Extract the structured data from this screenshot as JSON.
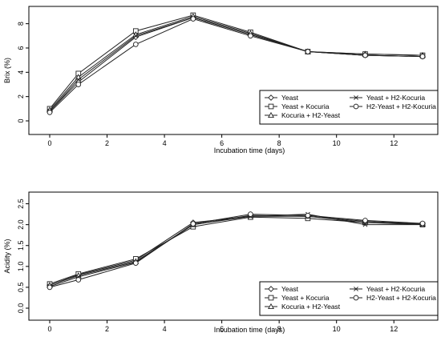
{
  "chart_data": [
    {
      "type": "line",
      "title": "",
      "xlabel": "Incubation time (days)",
      "ylabel": "Brix (%)",
      "xlim": [
        0,
        13
      ],
      "ylim": [
        0,
        8.7
      ],
      "xticks": [
        0,
        2,
        4,
        6,
        8,
        10,
        12
      ],
      "yticks": [
        0,
        2,
        4,
        6,
        8
      ],
      "grid": false,
      "legend_position": "bottom-right",
      "x": [
        0,
        1,
        3,
        5,
        7,
        9,
        11,
        13
      ],
      "series": [
        {
          "name": "Yeast",
          "marker": "diamond",
          "values": [
            0.8,
            3.2,
            6.9,
            8.5,
            7.1,
            5.7,
            5.4,
            5.3
          ]
        },
        {
          "name": "Yeast + Kocuria",
          "marker": "square",
          "values": [
            1.0,
            3.9,
            7.4,
            8.7,
            7.3,
            5.7,
            5.5,
            5.4
          ]
        },
        {
          "name": "Kocuria + H2-Yeast",
          "marker": "triangle",
          "values": [
            0.9,
            3.6,
            7.1,
            8.6,
            7.2,
            5.7,
            5.5,
            5.4
          ]
        },
        {
          "name": "Yeast + H2-Kocuria",
          "marker": "x",
          "values": [
            0.8,
            3.4,
            7.0,
            8.5,
            7.1,
            5.7,
            5.4,
            5.3
          ]
        },
        {
          "name": "H2-Yeast + H2-Kocuria",
          "marker": "circle",
          "values": [
            0.7,
            3.0,
            6.3,
            8.4,
            7.0,
            5.7,
            5.4,
            5.3
          ]
        }
      ]
    },
    {
      "type": "line",
      "title": "",
      "xlabel": "Incubation time (days)",
      "ylabel": "Acidity (%)",
      "xlim": [
        0,
        13
      ],
      "ylim": [
        0,
        2.3
      ],
      "xticks": [
        0,
        2,
        4,
        6,
        8,
        10,
        12
      ],
      "yticks": [
        0.0,
        0.5,
        1.0,
        1.5,
        2.0,
        2.5
      ],
      "ytick_labels": [
        "0.0",
        "0.5",
        "1.0",
        "1.5",
        "2.0",
        "2.5"
      ],
      "grid": false,
      "legend_position": "bottom-right",
      "x": [
        0,
        1,
        3,
        5,
        7,
        9,
        11,
        13
      ],
      "series": [
        {
          "name": "Yeast",
          "marker": "diamond",
          "values": [
            0.55,
            0.8,
            1.15,
            2.05,
            2.2,
            2.2,
            2.05,
            2.02
          ]
        },
        {
          "name": "Yeast + Kocuria",
          "marker": "square",
          "values": [
            0.58,
            0.82,
            1.18,
            1.95,
            2.18,
            2.15,
            2.05,
            2.0
          ]
        },
        {
          "name": "Kocuria + H2-Yeast",
          "marker": "triangle",
          "values": [
            0.55,
            0.78,
            1.12,
            2.0,
            2.22,
            2.2,
            2.08,
            2.02
          ]
        },
        {
          "name": "Yeast + H2-Kocuria",
          "marker": "x",
          "values": [
            0.52,
            0.75,
            1.1,
            2.0,
            2.2,
            2.25,
            2.0,
            2.0
          ]
        },
        {
          "name": "H2-Yeast + H2-Kocuria",
          "marker": "circle",
          "values": [
            0.5,
            0.68,
            1.08,
            2.02,
            2.25,
            2.22,
            2.1,
            2.03
          ]
        }
      ]
    }
  ]
}
